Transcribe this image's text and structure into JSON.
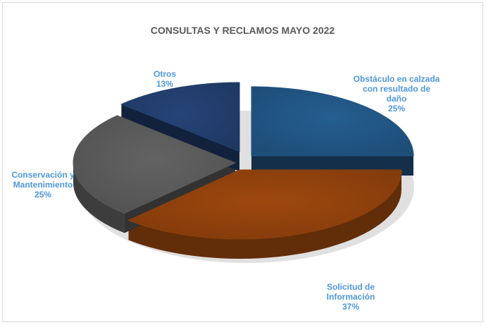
{
  "chart_data": {
    "type": "pie",
    "title": "CONSULTAS Y RECLAMOS MAYO 2022",
    "slices": [
      {
        "label": "Obstáculo en calzada con resultado de daño",
        "value": 25,
        "value_label": "25%",
        "color": "#255e91"
      },
      {
        "label": "Solicitud de Información",
        "value": 37,
        "value_label": "37%",
        "color": "#9e480e"
      },
      {
        "label": "Conservación y Mantenimiento",
        "value": 25,
        "value_label": "25%",
        "color": "#636363"
      },
      {
        "label": "Otros",
        "value": 13,
        "value_label": "13%",
        "color": "#264478"
      }
    ],
    "label_color": "#4f97d6"
  }
}
